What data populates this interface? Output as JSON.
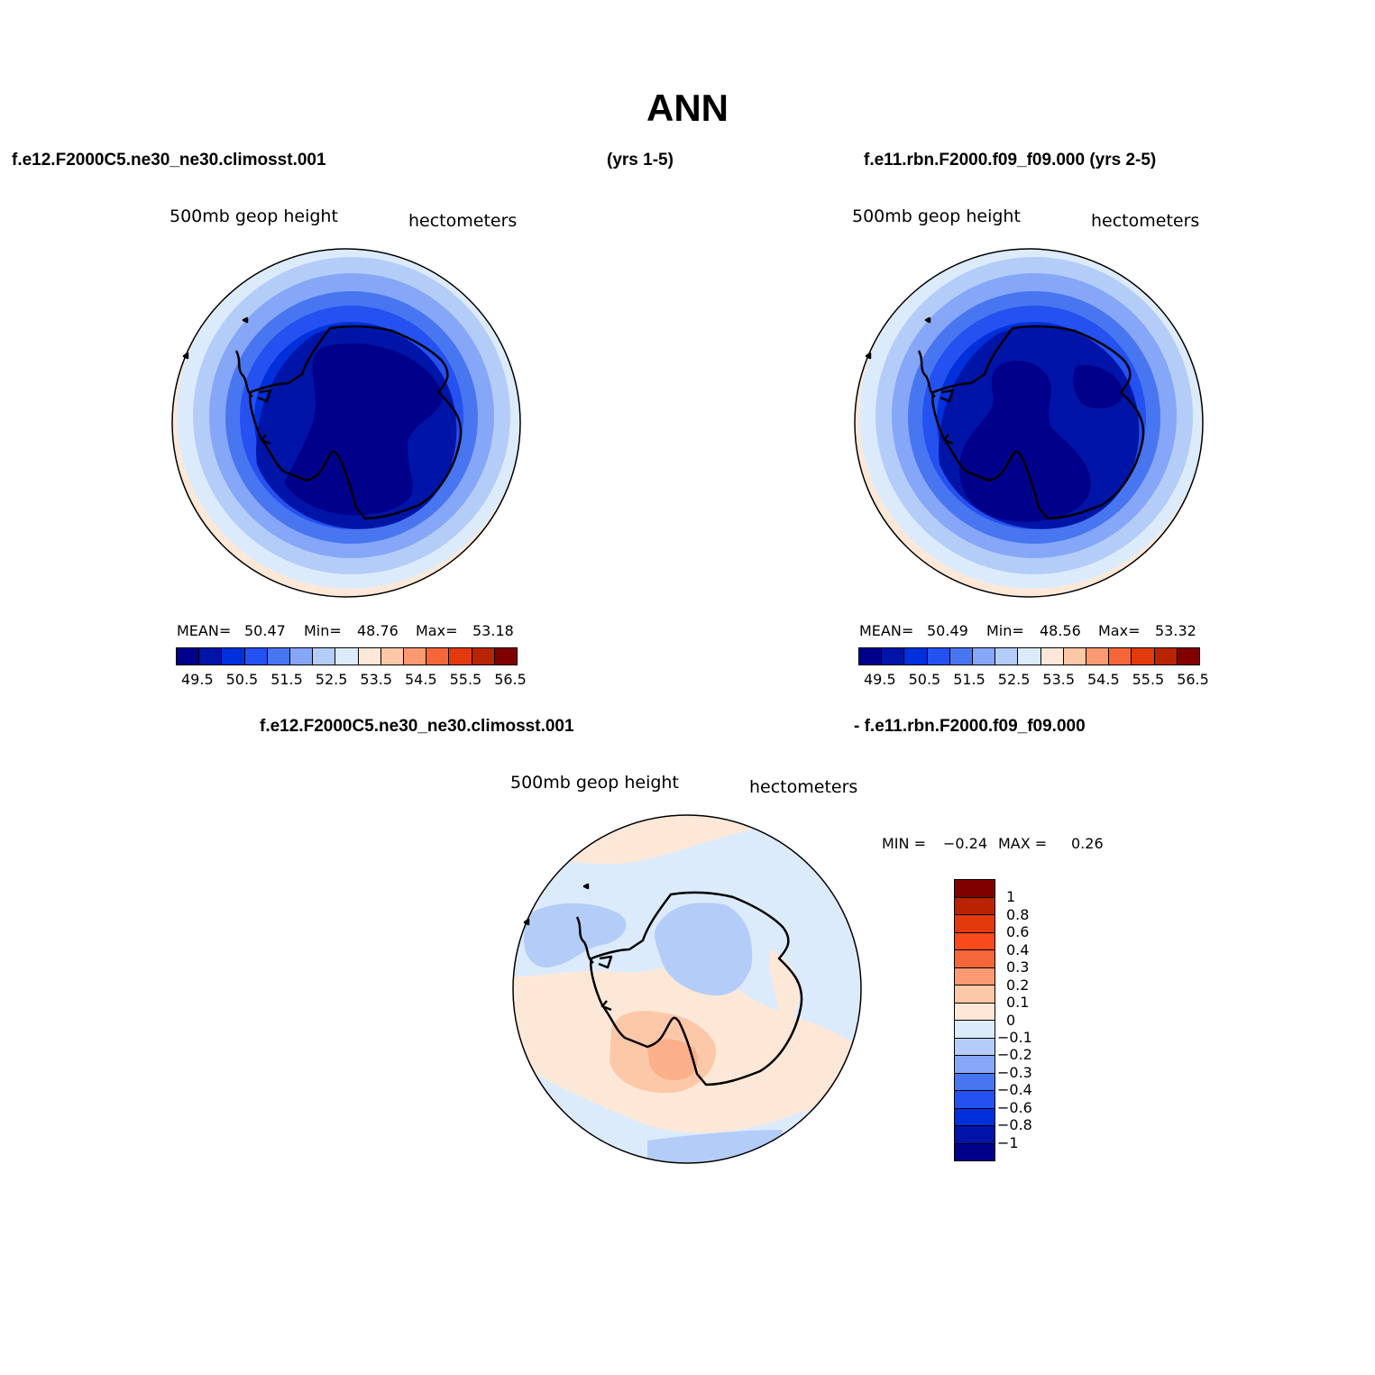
{
  "title": "ANN",
  "header": {
    "case1": "f.e12.F2000C5.ne30_ne30.climosst.001",
    "years1": "(yrs 1-5)",
    "case2": "f.e11.rbn.F2000.f09_f09.000 (yrs 2-5)"
  },
  "panel1": {
    "variable": "500mb  geop  height",
    "units": "hectometers",
    "stats": {
      "mean_label": "MEAN=",
      "mean": "50.47",
      "min_label": "Min=",
      "min": "48.76",
      "max_label": "Max=",
      "max": "53.18"
    }
  },
  "panel2": {
    "variable": "500mb  geop  height",
    "units": "hectometers",
    "stats": {
      "mean_label": "MEAN=",
      "mean": "50.49",
      "min_label": "Min=",
      "min": "48.56",
      "max_label": "Max=",
      "max": "53.32"
    }
  },
  "diff": {
    "title_left": "f.e12.F2000C5.ne30_ne30.climosst.001",
    "title_right": "- f.e11.rbn.F2000.f09_f09.000",
    "variable": "500mb  geop  height",
    "units": "hectometers",
    "stats": {
      "min_label": "MIN =",
      "min": "−0.24",
      "max_label": "MAX =",
      "max": "0.26"
    }
  },
  "field_colorbar": {
    "colors": [
      "#00008b",
      "#0015a8",
      "#0030dc",
      "#2451f0",
      "#4876f0",
      "#86a6f8",
      "#b4cdf8",
      "#dcebfc",
      "#fde8d8",
      "#fdc8a8",
      "#fb9a72",
      "#f5663a",
      "#e23a0c",
      "#b82400",
      "#800000"
    ],
    "tick_labels": [
      "49.5",
      "50.5",
      "51.5",
      "52.5",
      "53.5",
      "54.5",
      "55.5",
      "56.5"
    ]
  },
  "diff_colorbar": {
    "colors": [
      "#00008b",
      "#0015a8",
      "#0030dc",
      "#2451f0",
      "#4876f0",
      "#86a6f8",
      "#b4cdf8",
      "#dcebfc",
      "#fde8d8",
      "#fdc8a8",
      "#fb9a72",
      "#f5663a",
      "#f84a1a",
      "#e23a0c",
      "#b82400",
      "#800000"
    ],
    "tick_labels": [
      "−1",
      "−0.8",
      "−0.6",
      "−0.4",
      "−0.3",
      "−0.2",
      "−0.1",
      "0",
      "0.1",
      "0.2",
      "0.3",
      "0.4",
      "0.6",
      "0.8",
      "1"
    ]
  }
}
